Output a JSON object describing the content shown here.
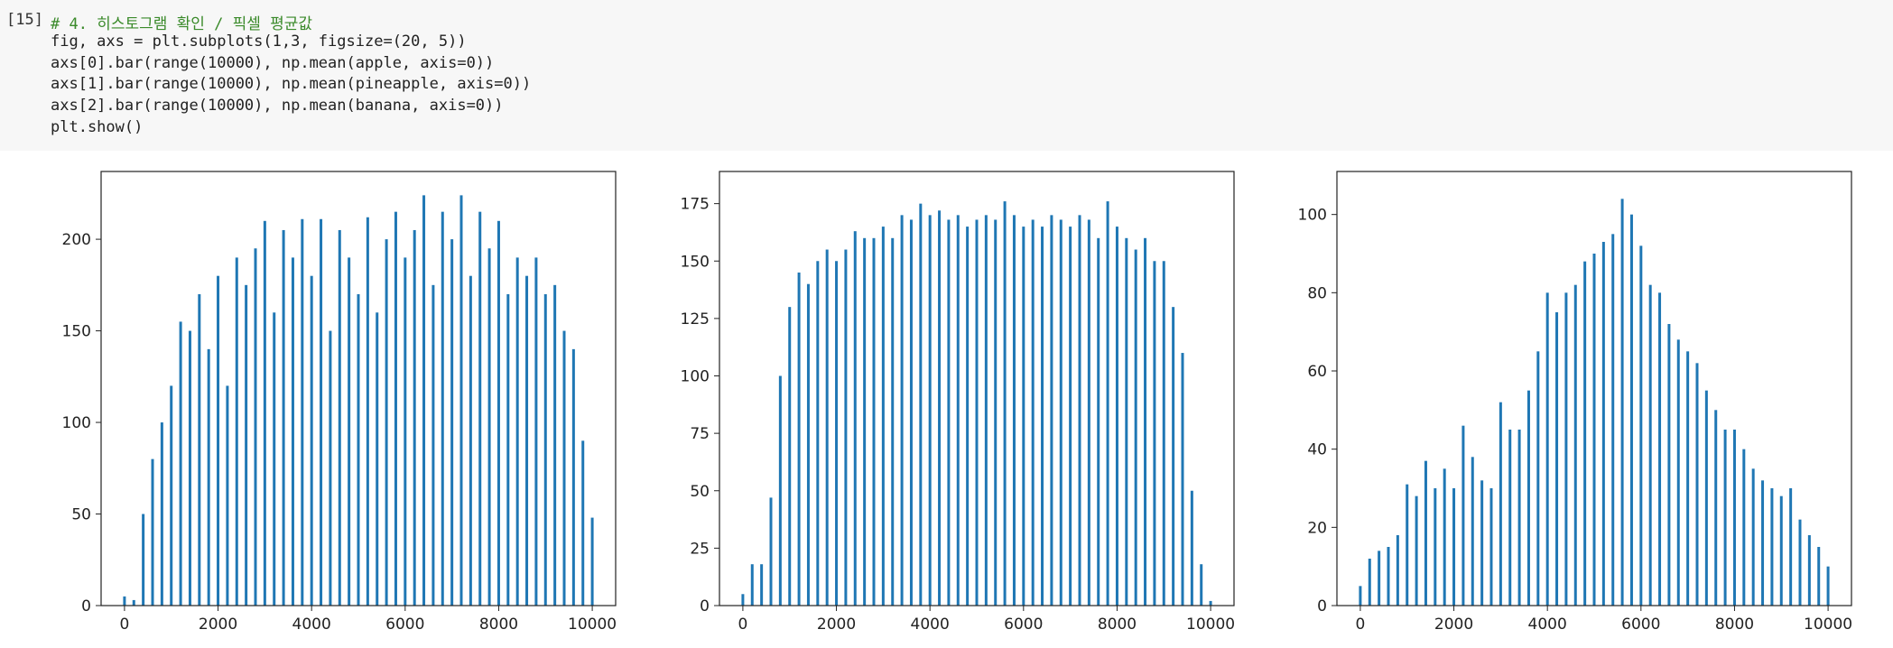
{
  "cell": {
    "prompt": "[15]",
    "code": [
      "# 4. 히스토그램 확인 / 픽셀 평균값",
      "fig, axs = plt.subplots(1,3, figsize=(20, 5))",
      "axs[0].bar(range(10000), np.mean(apple, axis=0))",
      "axs[1].bar(range(10000), np.mean(pineapple, axis=0))",
      "axs[2].bar(range(10000), np.mean(banana, axis=0))",
      "plt.show()"
    ]
  },
  "chart_data": [
    {
      "type": "bar",
      "color": "#1f77b4",
      "x": [
        0,
        200,
        400,
        600,
        800,
        1000,
        1200,
        1400,
        1600,
        1800,
        2000,
        2200,
        2400,
        2600,
        2800,
        3000,
        3200,
        3400,
        3600,
        3800,
        4000,
        4200,
        4400,
        4600,
        4800,
        5000,
        5200,
        5400,
        5600,
        5800,
        6000,
        6200,
        6400,
        6600,
        6800,
        7000,
        7200,
        7400,
        7600,
        7800,
        8000,
        8200,
        8400,
        8600,
        8800,
        9000,
        9200,
        9400,
        9600,
        9800,
        10000
      ],
      "values": [
        5,
        3,
        50,
        80,
        100,
        120,
        155,
        150,
        170,
        140,
        180,
        120,
        190,
        175,
        195,
        210,
        160,
        205,
        190,
        211,
        180,
        211,
        150,
        205,
        190,
        170,
        212,
        160,
        200,
        215,
        190,
        205,
        224,
        175,
        215,
        200,
        224,
        180,
        215,
        195,
        210,
        170,
        190,
        180,
        190,
        170,
        175,
        150,
        140,
        90,
        48
      ],
      "xlim": [
        -500,
        10500
      ],
      "xticks": [
        0,
        2000,
        4000,
        6000,
        8000,
        10000
      ],
      "ylim": [
        0,
        237
      ],
      "yticks": [
        0,
        50,
        100,
        150,
        200
      ]
    },
    {
      "type": "bar",
      "color": "#1f77b4",
      "x": [
        0,
        200,
        400,
        600,
        800,
        1000,
        1200,
        1400,
        1600,
        1800,
        2000,
        2200,
        2400,
        2600,
        2800,
        3000,
        3200,
        3400,
        3600,
        3800,
        4000,
        4200,
        4400,
        4600,
        4800,
        5000,
        5200,
        5400,
        5600,
        5800,
        6000,
        6200,
        6400,
        6600,
        6800,
        7000,
        7200,
        7400,
        7600,
        7800,
        8000,
        8200,
        8400,
        8600,
        8800,
        9000,
        9200,
        9400,
        9600,
        9800,
        10000
      ],
      "values": [
        5,
        18,
        18,
        47,
        100,
        130,
        145,
        140,
        150,
        155,
        150,
        155,
        163,
        160,
        160,
        165,
        160,
        170,
        168,
        175,
        170,
        172,
        168,
        170,
        165,
        168,
        170,
        168,
        176,
        170,
        165,
        168,
        165,
        170,
        168,
        165,
        170,
        168,
        160,
        176,
        165,
        160,
        155,
        160,
        150,
        150,
        130,
        110,
        50,
        18,
        2
      ],
      "xlim": [
        -500,
        10500
      ],
      "xticks": [
        0,
        2000,
        4000,
        6000,
        8000,
        10000
      ],
      "ylim": [
        0,
        189
      ],
      "yticks": [
        0,
        25,
        50,
        75,
        100,
        125,
        150,
        175
      ]
    },
    {
      "type": "bar",
      "color": "#1f77b4",
      "x": [
        0,
        200,
        400,
        600,
        800,
        1000,
        1200,
        1400,
        1600,
        1800,
        2000,
        2200,
        2400,
        2600,
        2800,
        3000,
        3200,
        3400,
        3600,
        3800,
        4000,
        4200,
        4400,
        4600,
        4800,
        5000,
        5200,
        5400,
        5600,
        5800,
        6000,
        6200,
        6400,
        6600,
        6800,
        7000,
        7200,
        7400,
        7600,
        7800,
        8000,
        8200,
        8400,
        8600,
        8800,
        9000,
        9200,
        9400,
        9600,
        9800,
        10000
      ],
      "values": [
        5,
        12,
        14,
        15,
        18,
        31,
        28,
        37,
        30,
        35,
        30,
        46,
        38,
        32,
        30,
        52,
        45,
        45,
        55,
        65,
        80,
        75,
        80,
        82,
        88,
        90,
        93,
        95,
        104,
        100,
        92,
        82,
        80,
        72,
        68,
        65,
        62,
        55,
        50,
        45,
        45,
        40,
        35,
        32,
        30,
        28,
        30,
        22,
        18,
        15,
        10
      ],
      "xlim": [
        -500,
        10500
      ],
      "xticks": [
        0,
        2000,
        4000,
        6000,
        8000,
        10000
      ],
      "ylim": [
        0,
        111
      ],
      "yticks": [
        0,
        20,
        40,
        60,
        80,
        100
      ]
    }
  ]
}
